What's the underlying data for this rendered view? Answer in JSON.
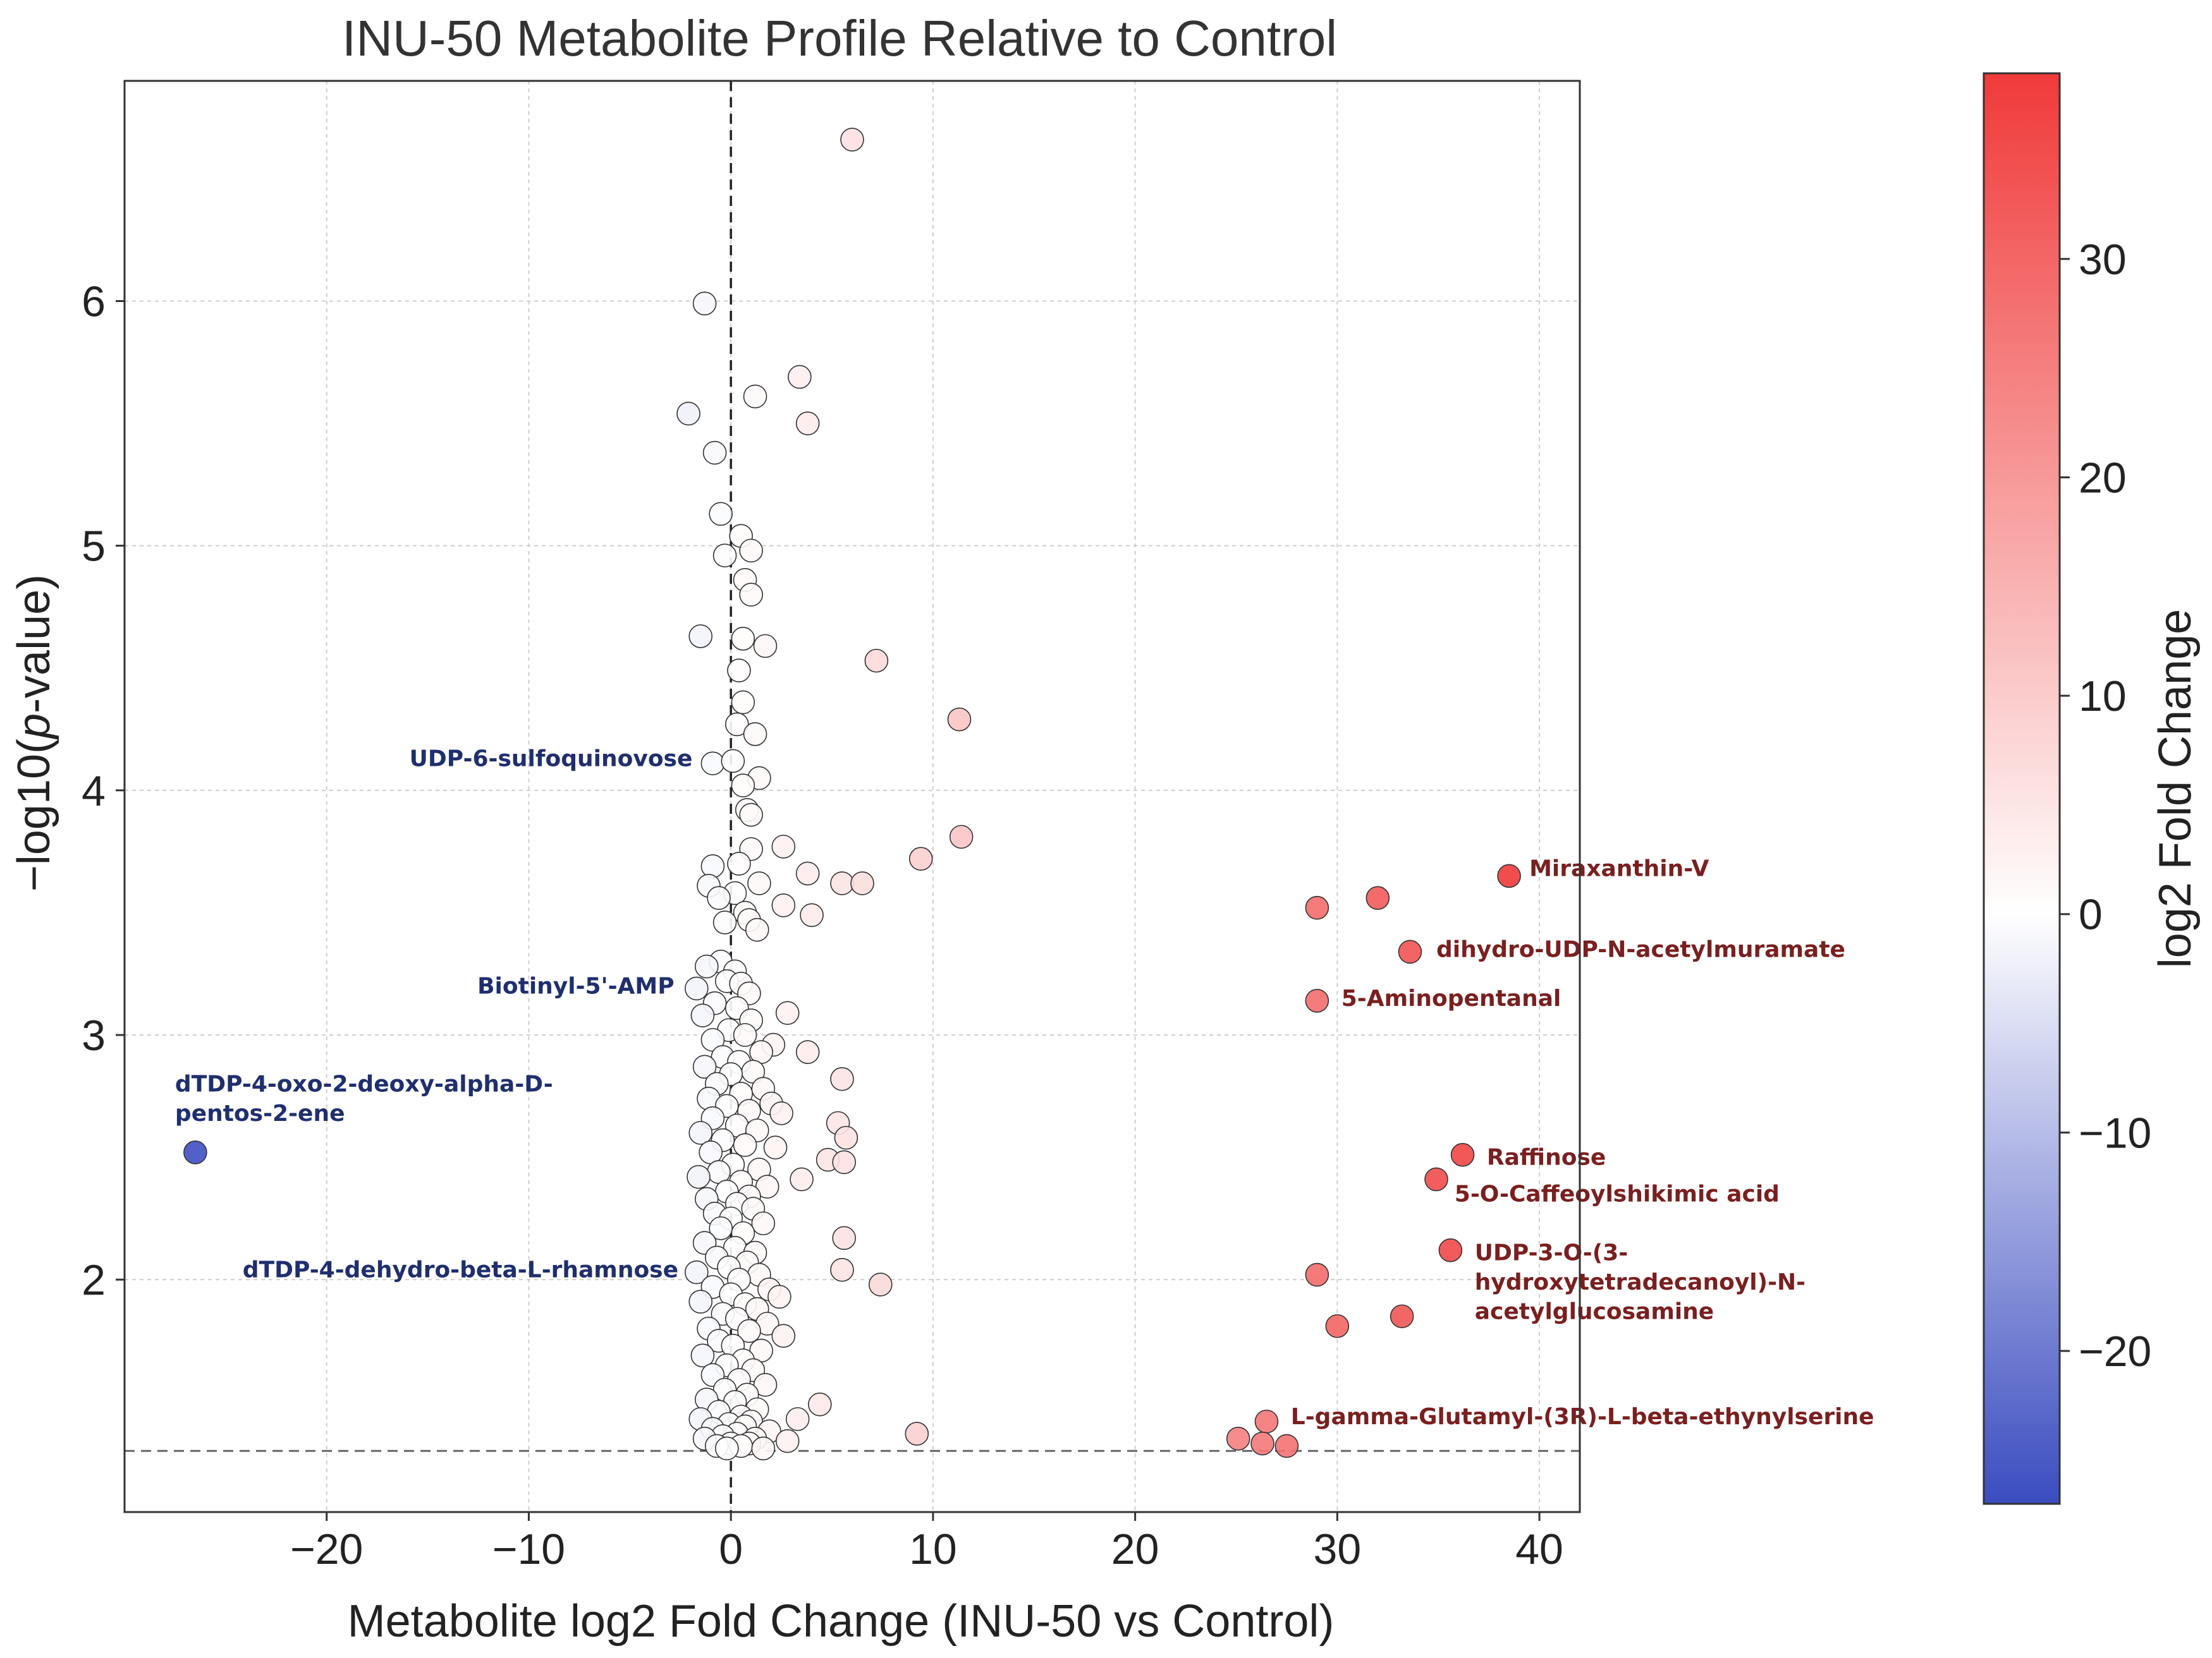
{
  "chart_data": {
    "type": "scatter",
    "title": "INU-50 Metabolite Profile Relative to Control",
    "xlabel": "Metabolite log2 Fold Change (INU-50 vs Control)",
    "ylabel": "−log10(p-value)",
    "ylabel_parts": {
      "pre": "−log10(",
      "italic": "p",
      "post": "-value)"
    },
    "xlim": [
      -30,
      42
    ],
    "ylim": [
      1.05,
      6.9
    ],
    "xticks": [
      -20,
      -10,
      0,
      10,
      20,
      30,
      40
    ],
    "xtick_labels": [
      "−20",
      "−10",
      "0",
      "10",
      "20",
      "30",
      "40"
    ],
    "yticks": [
      2,
      3,
      4,
      5,
      6
    ],
    "ytick_labels": [
      "2",
      "3",
      "4",
      "5",
      "6"
    ],
    "grid": true,
    "threshold_lines": {
      "x": 0,
      "y": 1.3
    },
    "colorbar": {
      "label": "log2 Fold Change",
      "min": -27,
      "max": 38.5,
      "ticks": [
        -20,
        -10,
        0,
        10,
        20,
        30
      ],
      "tick_labels": [
        "−20",
        "−10",
        "0",
        "10",
        "20",
        "30"
      ],
      "colors": [
        "#3b4cc0",
        "#ffffff",
        "#f03a3a"
      ]
    },
    "points": [
      {
        "x": -26.5,
        "y": 2.52
      },
      {
        "x": 6.0,
        "y": 6.66
      },
      {
        "x": -1.3,
        "y": 5.99
      },
      {
        "x": 3.4,
        "y": 5.69
      },
      {
        "x": 1.2,
        "y": 5.61
      },
      {
        "x": -2.1,
        "y": 5.54
      },
      {
        "x": 3.8,
        "y": 5.5
      },
      {
        "x": -0.8,
        "y": 5.38
      },
      {
        "x": -0.5,
        "y": 5.13
      },
      {
        "x": 0.5,
        "y": 5.04
      },
      {
        "x": 1.0,
        "y": 4.98
      },
      {
        "x": -0.3,
        "y": 4.96
      },
      {
        "x": 0.7,
        "y": 4.86
      },
      {
        "x": 1.0,
        "y": 4.8
      },
      {
        "x": -1.5,
        "y": 4.63
      },
      {
        "x": 0.6,
        "y": 4.62
      },
      {
        "x": 1.7,
        "y": 4.59
      },
      {
        "x": 7.2,
        "y": 4.53
      },
      {
        "x": 0.4,
        "y": 4.49
      },
      {
        "x": 0.6,
        "y": 4.36
      },
      {
        "x": 11.3,
        "y": 4.29
      },
      {
        "x": 0.3,
        "y": 4.27
      },
      {
        "x": 1.2,
        "y": 4.23
      },
      {
        "x": -0.9,
        "y": 4.11
      },
      {
        "x": 0.1,
        "y": 4.12
      },
      {
        "x": 1.4,
        "y": 4.05
      },
      {
        "x": 0.6,
        "y": 4.02
      },
      {
        "x": 0.8,
        "y": 3.92
      },
      {
        "x": 1.0,
        "y": 3.9
      },
      {
        "x": 11.4,
        "y": 3.81
      },
      {
        "x": 2.6,
        "y": 3.77
      },
      {
        "x": 1.0,
        "y": 3.76
      },
      {
        "x": 9.4,
        "y": 3.72
      },
      {
        "x": -0.9,
        "y": 3.69
      },
      {
        "x": 0.4,
        "y": 3.7
      },
      {
        "x": 3.8,
        "y": 3.66
      },
      {
        "x": 5.5,
        "y": 3.62
      },
      {
        "x": 6.5,
        "y": 3.62
      },
      {
        "x": -1.1,
        "y": 3.61
      },
      {
        "x": 1.4,
        "y": 3.62
      },
      {
        "x": 0.2,
        "y": 3.58
      },
      {
        "x": -0.6,
        "y": 3.56
      },
      {
        "x": 2.6,
        "y": 3.53
      },
      {
        "x": 0.7,
        "y": 3.5
      },
      {
        "x": 4.0,
        "y": 3.49
      },
      {
        "x": 0.9,
        "y": 3.47
      },
      {
        "x": -0.3,
        "y": 3.46
      },
      {
        "x": 1.3,
        "y": 3.43
      },
      {
        "x": -0.5,
        "y": 3.3
      },
      {
        "x": -1.2,
        "y": 3.28
      },
      {
        "x": 0.2,
        "y": 3.26
      },
      {
        "x": -0.2,
        "y": 3.22
      },
      {
        "x": 0.5,
        "y": 3.21
      },
      {
        "x": -1.7,
        "y": 3.19
      },
      {
        "x": 0.9,
        "y": 3.17
      },
      {
        "x": -0.8,
        "y": 3.13
      },
      {
        "x": 0.3,
        "y": 3.11
      },
      {
        "x": 2.8,
        "y": 3.09
      },
      {
        "x": -1.4,
        "y": 3.08
      },
      {
        "x": 1.0,
        "y": 3.06
      },
      {
        "x": -0.1,
        "y": 3.02
      },
      {
        "x": 0.7,
        "y": 3.0
      },
      {
        "x": -0.9,
        "y": 2.98
      },
      {
        "x": 2.1,
        "y": 2.96
      },
      {
        "x": 1.5,
        "y": 2.93
      },
      {
        "x": 3.8,
        "y": 2.93
      },
      {
        "x": -0.4,
        "y": 2.91
      },
      {
        "x": 0.4,
        "y": 2.89
      },
      {
        "x": -1.3,
        "y": 2.87
      },
      {
        "x": 1.1,
        "y": 2.85
      },
      {
        "x": 0.0,
        "y": 2.84
      },
      {
        "x": 5.5,
        "y": 2.82
      },
      {
        "x": -0.7,
        "y": 2.8
      },
      {
        "x": 1.6,
        "y": 2.78
      },
      {
        "x": 0.5,
        "y": 2.76
      },
      {
        "x": -1.1,
        "y": 2.74
      },
      {
        "x": 2.0,
        "y": 2.72
      },
      {
        "x": -0.2,
        "y": 2.71
      },
      {
        "x": 0.9,
        "y": 2.69
      },
      {
        "x": 2.5,
        "y": 2.68
      },
      {
        "x": -0.9,
        "y": 2.66
      },
      {
        "x": 5.3,
        "y": 2.64
      },
      {
        "x": 0.3,
        "y": 2.63
      },
      {
        "x": 1.3,
        "y": 2.61
      },
      {
        "x": -1.5,
        "y": 2.6
      },
      {
        "x": 5.7,
        "y": 2.58
      },
      {
        "x": -0.4,
        "y": 2.57
      },
      {
        "x": 0.7,
        "y": 2.55
      },
      {
        "x": 2.2,
        "y": 2.54
      },
      {
        "x": -1.0,
        "y": 2.52
      },
      {
        "x": 4.8,
        "y": 2.49
      },
      {
        "x": 5.6,
        "y": 2.48
      },
      {
        "x": 0.1,
        "y": 2.47
      },
      {
        "x": 1.4,
        "y": 2.45
      },
      {
        "x": -0.6,
        "y": 2.44
      },
      {
        "x": -1.6,
        "y": 2.42
      },
      {
        "x": 3.5,
        "y": 2.41
      },
      {
        "x": 0.5,
        "y": 2.4
      },
      {
        "x": 1.8,
        "y": 2.38
      },
      {
        "x": -0.2,
        "y": 2.36
      },
      {
        "x": 0.9,
        "y": 2.34
      },
      {
        "x": -1.2,
        "y": 2.33
      },
      {
        "x": 0.3,
        "y": 2.31
      },
      {
        "x": 1.1,
        "y": 2.29
      },
      {
        "x": -0.8,
        "y": 2.27
      },
      {
        "x": 0.0,
        "y": 2.25
      },
      {
        "x": 1.6,
        "y": 2.23
      },
      {
        "x": -0.5,
        "y": 2.21
      },
      {
        "x": 0.6,
        "y": 2.19
      },
      {
        "x": 5.6,
        "y": 2.17
      },
      {
        "x": -1.3,
        "y": 2.15
      },
      {
        "x": 0.2,
        "y": 2.13
      },
      {
        "x": 1.2,
        "y": 2.11
      },
      {
        "x": -0.7,
        "y": 2.09
      },
      {
        "x": 0.8,
        "y": 2.07
      },
      {
        "x": -0.1,
        "y": 2.05
      },
      {
        "x": 5.5,
        "y": 2.04
      },
      {
        "x": -1.7,
        "y": 2.03
      },
      {
        "x": 1.4,
        "y": 2.02
      },
      {
        "x": 0.4,
        "y": 2.0
      },
      {
        "x": 7.4,
        "y": 1.98
      },
      {
        "x": -0.9,
        "y": 1.97
      },
      {
        "x": 1.9,
        "y": 1.96
      },
      {
        "x": 0.0,
        "y": 1.94
      },
      {
        "x": 2.4,
        "y": 1.93
      },
      {
        "x": -1.5,
        "y": 1.91
      },
      {
        "x": 0.7,
        "y": 1.9
      },
      {
        "x": 1.3,
        "y": 1.88
      },
      {
        "x": -0.4,
        "y": 1.86
      },
      {
        "x": 0.3,
        "y": 1.84
      },
      {
        "x": 1.8,
        "y": 1.82
      },
      {
        "x": -1.1,
        "y": 1.8
      },
      {
        "x": 0.9,
        "y": 1.79
      },
      {
        "x": 2.6,
        "y": 1.77
      },
      {
        "x": -0.6,
        "y": 1.75
      },
      {
        "x": 0.1,
        "y": 1.73
      },
      {
        "x": 1.5,
        "y": 1.71
      },
      {
        "x": -1.4,
        "y": 1.69
      },
      {
        "x": 0.6,
        "y": 1.67
      },
      {
        "x": -0.2,
        "y": 1.65
      },
      {
        "x": 1.1,
        "y": 1.63
      },
      {
        "x": -0.9,
        "y": 1.61
      },
      {
        "x": 0.4,
        "y": 1.59
      },
      {
        "x": 1.7,
        "y": 1.57
      },
      {
        "x": -0.3,
        "y": 1.55
      },
      {
        "x": 0.8,
        "y": 1.53
      },
      {
        "x": -1.2,
        "y": 1.51
      },
      {
        "x": 0.2,
        "y": 1.5
      },
      {
        "x": 4.4,
        "y": 1.49
      },
      {
        "x": 1.3,
        "y": 1.47
      },
      {
        "x": -0.6,
        "y": 1.46
      },
      {
        "x": 0.5,
        "y": 1.44
      },
      {
        "x": -1.5,
        "y": 1.43
      },
      {
        "x": 3.3,
        "y": 1.43
      },
      {
        "x": 1.0,
        "y": 1.42
      },
      {
        "x": -0.1,
        "y": 1.41
      },
      {
        "x": 0.7,
        "y": 1.4
      },
      {
        "x": -0.9,
        "y": 1.39
      },
      {
        "x": 1.9,
        "y": 1.38
      },
      {
        "x": 0.3,
        "y": 1.37
      },
      {
        "x": 9.2,
        "y": 1.37
      },
      {
        "x": -0.4,
        "y": 1.36
      },
      {
        "x": 1.2,
        "y": 1.35
      },
      {
        "x": -1.3,
        "y": 1.35
      },
      {
        "x": 2.8,
        "y": 1.34
      },
      {
        "x": 0.0,
        "y": 1.33
      },
      {
        "x": 0.9,
        "y": 1.33
      },
      {
        "x": -0.7,
        "y": 1.32
      },
      {
        "x": 0.5,
        "y": 1.32
      },
      {
        "x": 1.6,
        "y": 1.31
      },
      {
        "x": -0.2,
        "y": 1.31
      },
      {
        "x": 38.5,
        "y": 3.65
      },
      {
        "x": 32.0,
        "y": 3.56
      },
      {
        "x": 29.0,
        "y": 3.52
      },
      {
        "x": 33.6,
        "y": 3.34
      },
      {
        "x": 29.0,
        "y": 3.14
      },
      {
        "x": 36.2,
        "y": 2.51
      },
      {
        "x": 34.9,
        "y": 2.41
      },
      {
        "x": 35.6,
        "y": 2.12
      },
      {
        "x": 29.0,
        "y": 2.02
      },
      {
        "x": 33.2,
        "y": 1.85
      },
      {
        "x": 30.0,
        "y": 1.81
      },
      {
        "x": 26.5,
        "y": 1.42
      },
      {
        "x": 25.1,
        "y": 1.35
      },
      {
        "x": 26.3,
        "y": 1.33
      },
      {
        "x": 27.5,
        "y": 1.32
      }
    ],
    "annotations": [
      {
        "text": "UDP-6-sulfoquinovose",
        "x": -1.9,
        "y": 4.13,
        "ha": "right",
        "color": "#1f2f6e"
      },
      {
        "text": "Biotinyl-5'-AMP",
        "x": -2.8,
        "y": 3.2,
        "ha": "right",
        "color": "#1f2f6e"
      },
      {
        "text": "dTDP-4-oxo-2-deoxy-alpha-D-",
        "x": -27.5,
        "y": 2.8,
        "ha": "left",
        "color": "#1f2f6e"
      },
      {
        "text": "pentos-2-ene",
        "x": -27.5,
        "y": 2.68,
        "ha": "left",
        "color": "#1f2f6e"
      },
      {
        "text": "dTDP-4-dehydro-beta-L-rhamnose",
        "x": -2.6,
        "y": 2.04,
        "ha": "right",
        "color": "#1f2f6e"
      },
      {
        "text": "Miraxanthin-V",
        "x": 39.5,
        "y": 3.68,
        "ha": "left",
        "color": "#7a1f1f"
      },
      {
        "text": "dihydro-UDP-N-acetylmuramate",
        "x": 34.9,
        "y": 3.35,
        "ha": "left",
        "color": "#7a1f1f"
      },
      {
        "text": "5-Aminopentanal",
        "x": 30.2,
        "y": 3.15,
        "ha": "left",
        "color": "#7a1f1f"
      },
      {
        "text": "Raffinose",
        "x": 37.4,
        "y": 2.5,
        "ha": "left",
        "color": "#7a1f1f"
      },
      {
        "text": "5-O-Caffeoylshikimic acid",
        "x": 35.8,
        "y": 2.35,
        "ha": "left",
        "color": "#7a1f1f"
      },
      {
        "text": "UDP-3-O-(3-",
        "x": 36.8,
        "y": 2.11,
        "ha": "left",
        "color": "#7a1f1f"
      },
      {
        "text": "hydroxytetradecanoyl)-N-",
        "x": 36.8,
        "y": 1.99,
        "ha": "left",
        "color": "#7a1f1f"
      },
      {
        "text": "acetylglucosamine",
        "x": 36.8,
        "y": 1.87,
        "ha": "left",
        "color": "#7a1f1f"
      },
      {
        "text": "L-gamma-Glutamyl-(3R)-L-beta-ethynylserine",
        "x": 27.7,
        "y": 1.44,
        "ha": "left",
        "color": "#7a1f1f"
      }
    ]
  }
}
